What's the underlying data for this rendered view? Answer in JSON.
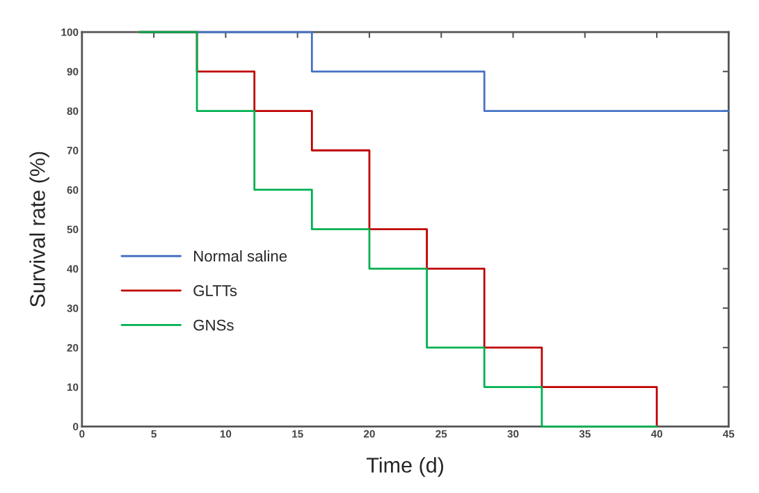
{
  "chart_data": {
    "type": "step",
    "xlabel": "Time (d)",
    "ylabel": "Survival rate (%)",
    "xlim": [
      0,
      45
    ],
    "xticks": [
      0,
      5,
      10,
      15,
      20,
      25,
      30,
      35,
      40,
      45
    ],
    "ylim": [
      0,
      100
    ],
    "yticks": [
      0,
      10,
      20,
      30,
      40,
      50,
      60,
      70,
      80,
      90,
      100
    ],
    "grid": false,
    "legend": "bottom left",
    "marker": "none",
    "line_style": "solid",
    "series": [
      {
        "name": "Normal saline",
        "color": "#4472c4",
        "x": [
          4,
          16,
          28,
          45
        ],
        "values": [
          100,
          90,
          80,
          80
        ]
      },
      {
        "name": "GLTTs",
        "color": "#c00000",
        "x": [
          4,
          8,
          12,
          16,
          20,
          24,
          28,
          32,
          40
        ],
        "values": [
          100,
          90,
          80,
          70,
          50,
          40,
          20,
          10,
          0
        ]
      },
      {
        "name": "GNSs",
        "color": "#00b050",
        "x": [
          4,
          8,
          12,
          16,
          20,
          24,
          28,
          32,
          40
        ],
        "values": [
          100,
          80,
          60,
          50,
          40,
          20,
          10,
          0,
          0
        ]
      }
    ]
  }
}
